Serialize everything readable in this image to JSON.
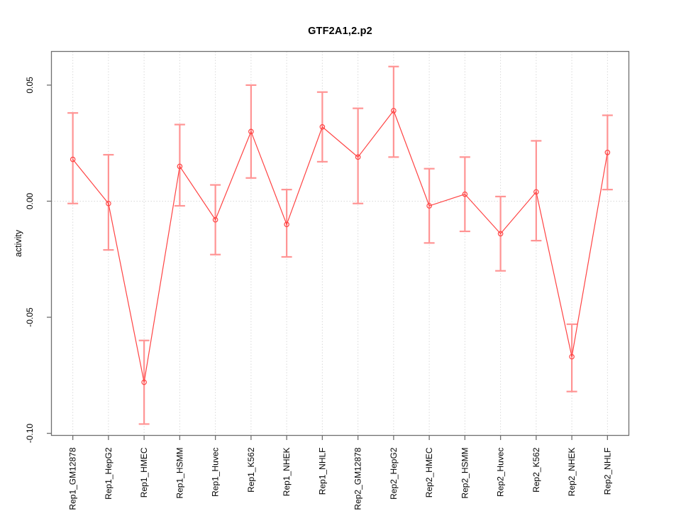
{
  "chart_data": {
    "type": "line",
    "title": "GTF2A1,2.p2",
    "ylabel": "activity",
    "xlabel": "",
    "legend_position": "none",
    "grid": {
      "vertical_per_category": true,
      "horizontal_at_zero": true,
      "style": "dotted"
    },
    "categories": [
      "Rep1_GM12878",
      "Rep1_HepG2",
      "Rep1_HMEC",
      "Rep1_HSMM",
      "Rep1_Huvec",
      "Rep1_K562",
      "Rep1_NHEK",
      "Rep1_NHLF",
      "Rep2_GM12878",
      "Rep2_HepG2",
      "Rep2_HMEC",
      "Rep2_HSMM",
      "Rep2_Huvec",
      "Rep2_K562",
      "Rep2_NHEK",
      "Rep2_NHLF"
    ],
    "series": [
      {
        "name": "activity",
        "marker": "open-circle",
        "values": [
          0.018,
          -0.001,
          -0.078,
          0.015,
          -0.008,
          0.03,
          -0.01,
          0.032,
          0.019,
          0.039,
          -0.002,
          0.003,
          -0.014,
          0.004,
          -0.067,
          0.021
        ],
        "upper": [
          0.038,
          0.02,
          -0.06,
          0.033,
          0.007,
          0.05,
          0.005,
          0.047,
          0.04,
          0.058,
          0.014,
          0.019,
          0.002,
          0.026,
          -0.053,
          0.037
        ],
        "lower": [
          -0.001,
          -0.021,
          -0.096,
          -0.002,
          -0.023,
          0.01,
          -0.024,
          0.017,
          -0.001,
          0.019,
          -0.018,
          -0.013,
          -0.03,
          -0.017,
          -0.082,
          0.005
        ]
      }
    ],
    "y_ticks": [
      0.05,
      0.0,
      -0.05,
      -0.1
    ],
    "y_tick_labels": [
      "0.05",
      "0.00",
      "-0.05",
      "-0.10"
    ],
    "ylim": [
      -0.1009,
      0.0645
    ],
    "colors": {
      "line": "#ff4343",
      "marker": "#ff4343",
      "error_bar": "#ff9494",
      "grid": "#d9d9d9",
      "axis": "#6e6e6e",
      "text": "#000000"
    }
  }
}
